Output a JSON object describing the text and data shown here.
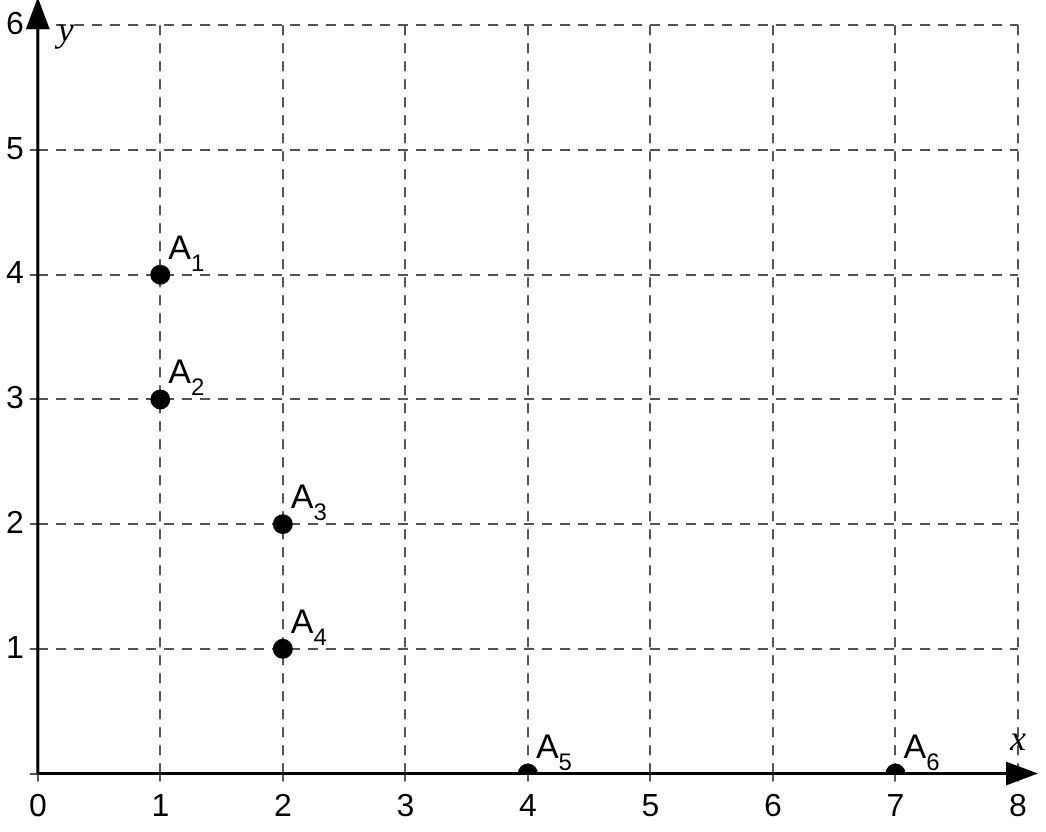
{
  "chart_data": {
    "type": "scatter",
    "xlabel": "x",
    "ylabel": "y",
    "x": [
      1,
      1,
      2,
      2,
      4,
      7
    ],
    "values": [
      4,
      3,
      2,
      1,
      0,
      0
    ],
    "color": "#000000",
    "marker": "circle",
    "xlim": [
      0,
      8
    ],
    "ylim": [
      0,
      6
    ],
    "xticks": [
      0,
      1,
      2,
      3,
      4,
      5,
      6,
      7,
      8
    ],
    "yticks": [
      {
        "value": 0,
        "label": null
      },
      1,
      2,
      3,
      4,
      5,
      6
    ],
    "grid": true,
    "legend": false,
    "annotations": [
      {
        "text": "A$_{1}$",
        "x": 1,
        "y": 4
      },
      {
        "text": "A$_{2}$",
        "x": 1,
        "y": 3
      },
      {
        "text": "A$_{3}$",
        "x": 2,
        "y": 2
      },
      {
        "text": "A$_{4}$",
        "x": 2,
        "y": 1
      },
      {
        "text": "A$_{5}$",
        "x": 4,
        "y": 0
      },
      {
        "text": "A$_{6}$",
        "x": 7,
        "y": 0
      }
    ]
  }
}
